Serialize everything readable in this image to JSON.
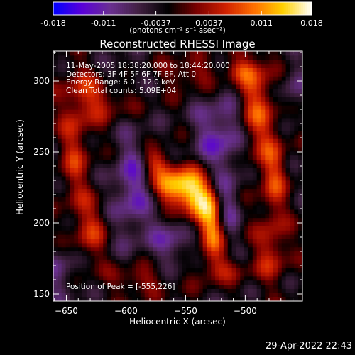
{
  "colorbar": {
    "tick_labels": [
      "-0.018",
      "-0.011",
      "-0.0037",
      "0.0037",
      "0.011",
      "0.018"
    ],
    "unit": "(photons cm⁻² s⁻¹ asec⁻²)",
    "colormap": [
      "#0000ff",
      "#5a00d8",
      "#6a3090",
      "#402040",
      "#000000",
      "#7a0000",
      "#d02000",
      "#ff7000",
      "#ffd000",
      "#ffffff"
    ]
  },
  "info_lines": [
    "11-May-2005 18:38:20.000 to 18:44:20.000",
    "Detectors: 3F 4F 5F 6F 7F 8F, Att 0",
    "Energy Range: 6.0 - 12.0 keV",
    "Clean     Total counts: 5.09E+04"
  ],
  "peak_text": "Position of Peak = [-555,226]",
  "footer_date": "29-Apr-2022 22:43",
  "chart_data": {
    "type": "heatmap",
    "title": "Reconstructed RHESSI Image",
    "xlabel": "Heliocentric X (arcsec)",
    "ylabel": "Heliocentric Y (arcsec)",
    "xlim": [
      -661,
      -452
    ],
    "ylim": [
      145,
      321
    ],
    "x_ticks": [
      -650,
      -600,
      -550,
      -500
    ],
    "y_ticks": [
      150,
      200,
      250,
      300
    ],
    "zlim": [
      -0.018,
      0.018
    ],
    "peak": [
      -555,
      226
    ],
    "sources": [
      {
        "x": -555,
        "y": 226,
        "rx": 14,
        "ry": 9,
        "amp": 0.018
      },
      {
        "x": -538,
        "y": 212,
        "rx": 10,
        "ry": 14,
        "amp": 0.012
      },
      {
        "x": -527,
        "y": 195,
        "rx": 7,
        "ry": 16,
        "amp": 0.011
      },
      {
        "x": -575,
        "y": 243,
        "rx": 9,
        "ry": 7,
        "amp": 0.009
      },
      {
        "x": -625,
        "y": 292,
        "rx": 18,
        "ry": 14,
        "amp": 0.008
      },
      {
        "x": -643,
        "y": 250,
        "rx": 9,
        "ry": 28,
        "amp": 0.007
      },
      {
        "x": -630,
        "y": 195,
        "rx": 10,
        "ry": 16,
        "amp": 0.007
      },
      {
        "x": -491,
        "y": 282,
        "rx": 11,
        "ry": 28,
        "amp": 0.01
      },
      {
        "x": -476,
        "y": 233,
        "rx": 8,
        "ry": 22,
        "amp": 0.008
      },
      {
        "x": -478,
        "y": 180,
        "rx": 10,
        "ry": 16,
        "amp": 0.007
      },
      {
        "x": -545,
        "y": 305,
        "rx": 16,
        "ry": 7,
        "amp": 0.006
      },
      {
        "x": -505,
        "y": 308,
        "rx": 10,
        "ry": 6,
        "amp": 0.006
      },
      {
        "x": -590,
        "y": 160,
        "rx": 16,
        "ry": 7,
        "amp": 0.006
      },
      {
        "x": -520,
        "y": 168,
        "rx": 16,
        "ry": 7,
        "amp": 0.005
      },
      {
        "x": -595,
        "y": 225,
        "rx": 12,
        "ry": 26,
        "amp": -0.009
      },
      {
        "x": -520,
        "y": 262,
        "rx": 16,
        "ry": 20,
        "amp": -0.009
      },
      {
        "x": -560,
        "y": 188,
        "rx": 14,
        "ry": 12,
        "amp": -0.007
      },
      {
        "x": -515,
        "y": 213,
        "rx": 8,
        "ry": 16,
        "amp": -0.007
      },
      {
        "x": -610,
        "y": 305,
        "rx": 14,
        "ry": 8,
        "amp": -0.006
      },
      {
        "x": -655,
        "y": 165,
        "rx": 10,
        "ry": 14,
        "amp": -0.006
      },
      {
        "x": -460,
        "y": 295,
        "rx": 8,
        "ry": 14,
        "amp": -0.005
      }
    ]
  }
}
